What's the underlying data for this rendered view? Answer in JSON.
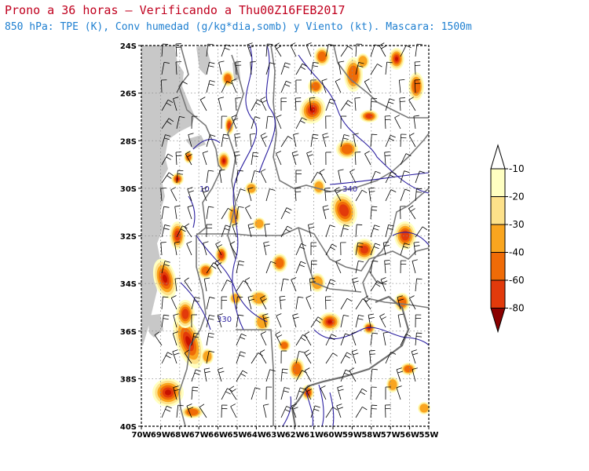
{
  "header": {
    "title": "Prono a 36 horas — Verificando a Thu00Z16FEB2017",
    "subtitle": "850 hPa: TPE (K), Conv humedad (g/kg*dia,somb) y Viento (kt). Mascara: 1500m"
  },
  "axes": {
    "lat_labels": [
      "24S",
      "26S",
      "28S",
      "30S",
      "32S",
      "34S",
      "36S",
      "38S",
      "40S"
    ],
    "lon_labels": [
      "70W",
      "69W",
      "68W",
      "67W",
      "66W",
      "65W",
      "64W",
      "63W",
      "62W",
      "61W",
      "60W",
      "59W",
      "58W",
      "57W",
      "56W",
      "55W"
    ]
  },
  "contour_labels": [
    "340",
    "330",
    "10"
  ],
  "colorbar": {
    "labels": [
      "-10",
      "-20",
      "-30",
      "-40",
      "-60",
      "-80"
    ],
    "colors": [
      "#ffffc2",
      "#fde18a",
      "#f9a51f",
      "#ef6b07",
      "#e23a0b",
      "#c61100",
      "#8a0000"
    ]
  },
  "colors": {
    "mask": "#c8c8c8",
    "contour": "#2b1fa0",
    "border": "#7a7a7a",
    "barb": "#000000"
  }
}
